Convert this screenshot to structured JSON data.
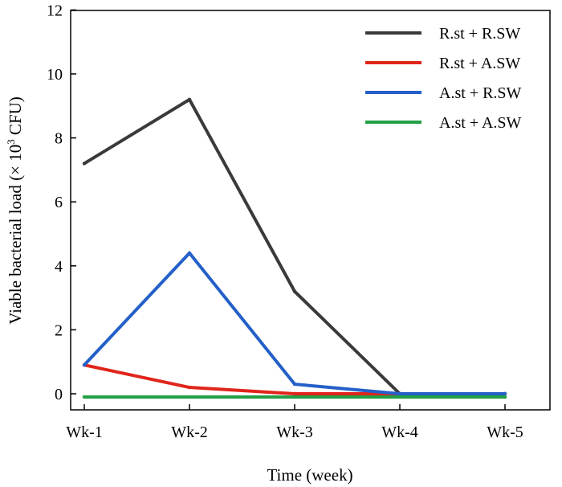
{
  "chart_data": {
    "type": "line",
    "title": "",
    "xlabel": "Time (week)",
    "ylabel": "Viable bacterial load (× 10³ CFU)",
    "ylabel_parts": {
      "main": "Viable bacterial load (× 10",
      "sup": "3",
      "tail": " CFU)"
    },
    "categories": [
      "Wk-1",
      "Wk-2",
      "Wk-3",
      "Wk-4",
      "Wk-5"
    ],
    "ylim": [
      0,
      12
    ],
    "yticks": [
      "0",
      "2",
      "4",
      "6",
      "8",
      "10",
      "12"
    ],
    "grid": false,
    "legend_position": "top-right",
    "series": [
      {
        "name": "R.st + R.SW",
        "color": "#3a3a3a",
        "values": [
          7.2,
          9.2,
          3.2,
          0.0,
          0.0
        ]
      },
      {
        "name": "R.st + A.SW",
        "color": "#e0251b",
        "values": [
          0.9,
          0.2,
          0.0,
          0.0,
          0.0
        ]
      },
      {
        "name": "A.st + R.SW",
        "color": "#2460c8",
        "values": [
          0.9,
          4.4,
          0.3,
          0.0,
          0.0
        ]
      },
      {
        "name": "A.st + A.SW",
        "color": "#22a045",
        "values": [
          -0.1,
          -0.1,
          -0.1,
          -0.1,
          -0.1
        ]
      }
    ]
  }
}
